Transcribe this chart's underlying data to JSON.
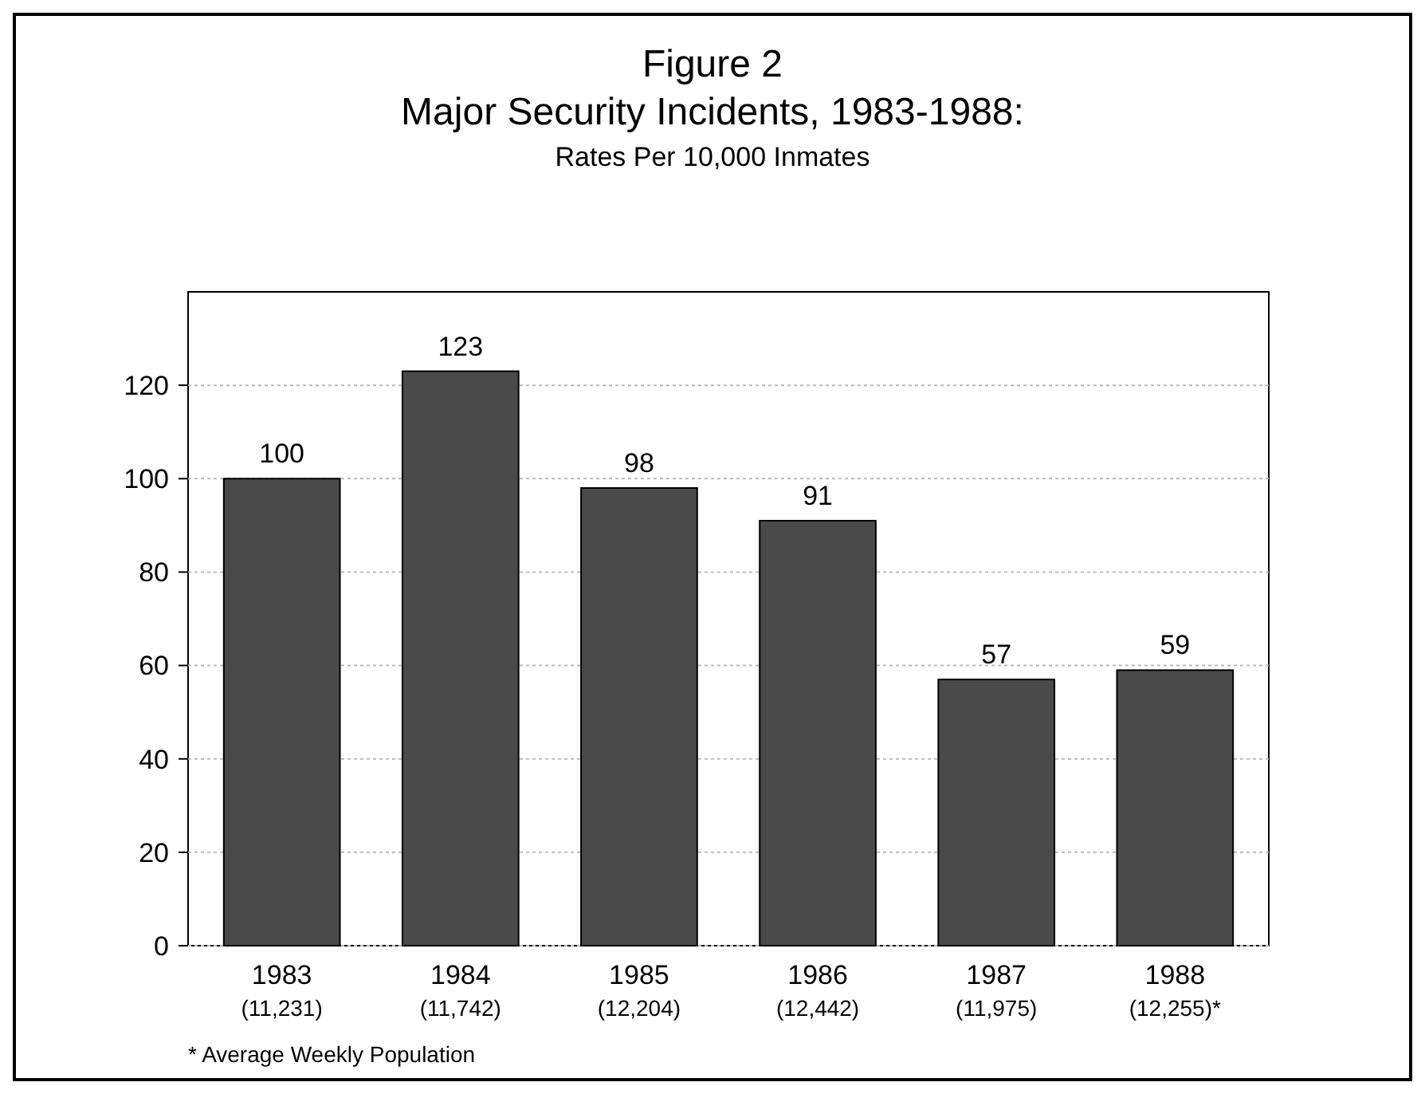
{
  "chart_data": {
    "type": "bar",
    "title": "Figure 2\nMajor Security Incidents, 1983-1988:",
    "subtitle": "Rates Per 10,000 Inmates",
    "categories": [
      "1983\n(11,231)",
      "1984\n(11,742)",
      "1985\n(12,204)",
      "1986\n(12,442)",
      "1987\n(11,975)",
      "1988\n(12,255)*"
    ],
    "values": [
      100,
      123,
      98,
      91,
      57,
      59
    ],
    "color": "#4a4a4a",
    "data_labels": true,
    "ylim": [
      0,
      140
    ],
    "yticks": [
      0,
      20,
      40,
      60,
      80,
      100,
      120
    ],
    "grid": "y",
    "annotations": [
      "* Average Weekly Population"
    ]
  }
}
